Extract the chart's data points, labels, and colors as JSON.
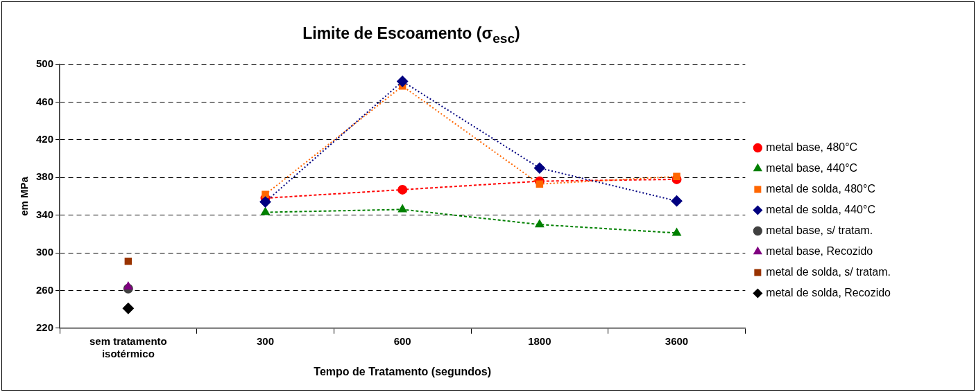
{
  "chart_data": {
    "type": "line",
    "title": "Limite de Escoamento (σ$_{esc}$)",
    "xlabel": "Tempo de Tratamento (segundos)",
    "ylabel": "em MPa",
    "categories": [
      "sem tratamento isotérmico",
      "300",
      "600",
      "1800",
      "3600"
    ],
    "ylim": [
      220,
      500
    ],
    "yticks": [
      220,
      260,
      300,
      340,
      380,
      420,
      460,
      500
    ],
    "grid": "y",
    "legend": "right",
    "series": [
      {
        "name": "metal base, 480°C",
        "color": "#ff0000",
        "marker": "circle",
        "line_style": "dashed",
        "values": [
          null,
          358,
          367,
          376,
          378
        ]
      },
      {
        "name": "metal base, 440°C",
        "color": "#008000",
        "marker": "triangle",
        "line_style": "dashed",
        "values": [
          null,
          343,
          346,
          330,
          321
        ]
      },
      {
        "name": "metal de solda, 480°C",
        "color": "#ff6600",
        "marker": "square",
        "line_style": "dotted",
        "values": [
          null,
          362,
          477,
          373,
          381
        ]
      },
      {
        "name": "metal de solda, 440°C",
        "color": "#000080",
        "marker": "diamond",
        "line_style": "dotted",
        "values": [
          null,
          354,
          482,
          390,
          355
        ]
      },
      {
        "name": "metal base, s/ tratam.",
        "type": "scatter",
        "color": "#404040",
        "marker": "circle",
        "x": [
          "sem tratamento isotérmico"
        ],
        "values": [
          262
        ]
      },
      {
        "name": "metal base, Recozido",
        "type": "scatter",
        "color": "#800080",
        "marker": "triangle",
        "x": [
          "sem tratamento isotérmico"
        ],
        "values": [
          264
        ]
      },
      {
        "name": "metal de solda, s/ tratam.",
        "type": "scatter",
        "color": "#993300",
        "marker": "square",
        "x": [
          "sem tratamento isotérmico"
        ],
        "values": [
          291
        ]
      },
      {
        "name": "metal de solda, Recozido",
        "type": "scatter",
        "color": "#000000",
        "marker": "diamond",
        "x": [
          "sem tratamento isotérmico"
        ],
        "values": [
          241
        ]
      }
    ]
  }
}
